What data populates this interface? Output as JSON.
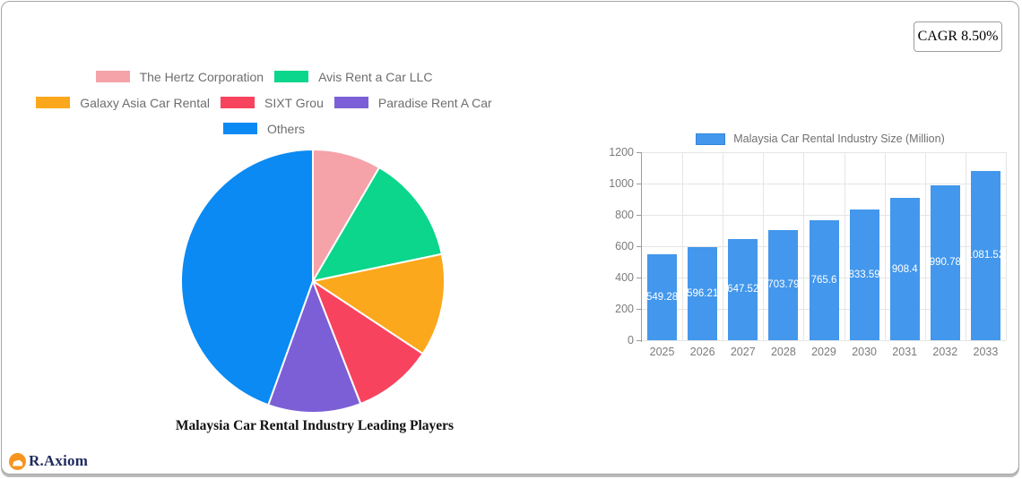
{
  "badge": {
    "label": "CAGR 8.50%"
  },
  "logo": {
    "brand": "R.Axiom"
  },
  "chart_data": [
    {
      "type": "pie",
      "title": "Malaysia Car Rental Industry Leading Players",
      "labels": [
        "The Hertz Corporation",
        "Avis Rent a Car LLC",
        "Galaxy Asia Car Rental",
        "SIXT Grou",
        "Paradise Rent A Car",
        "Others"
      ],
      "values_pct": [
        8.4,
        13.3,
        12.6,
        9.8,
        11.4,
        44.5
      ],
      "colors": [
        "#f5a2a8",
        "#0bd68b",
        "#fba81c",
        "#f8435f",
        "#7c5fd6",
        "#0a8af2"
      ],
      "legend_rows": [
        [
          0,
          1
        ],
        [
          2,
          3,
          4
        ],
        [
          5
        ]
      ],
      "start_angle_deg": 0,
      "direction": "clockwise",
      "slice_border_color": "#ffffff"
    },
    {
      "type": "bar",
      "legend": "Malaysia Car Rental Industry Size (Million)",
      "bar_color": "#4397ec",
      "categories": [
        "2025",
        "2026",
        "2027",
        "2028",
        "2029",
        "2030",
        "2031",
        "2032",
        "2033"
      ],
      "values": [
        549.28,
        596.21,
        647.52,
        703.79,
        765.6,
        833.59,
        908.4,
        990.78,
        1081.52
      ],
      "bar_labels": [
        "549.28",
        "596.21",
        "647.52",
        "703.79",
        "765.6",
        "833.59",
        "908.4",
        "990.78",
        "1081.52"
      ],
      "ylim": [
        0,
        1200
      ],
      "y_ticks": [
        0,
        200,
        400,
        600,
        800,
        1000,
        1200
      ],
      "grid": true,
      "legend_position": "top"
    }
  ]
}
